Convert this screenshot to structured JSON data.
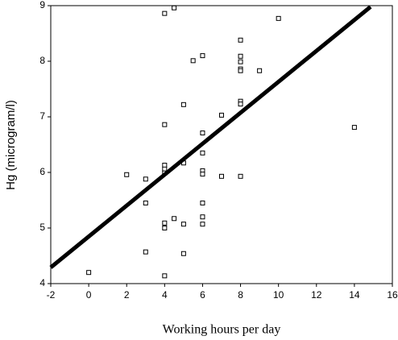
{
  "chart_data": {
    "type": "scatter",
    "x_label": "Working hours per day",
    "y_label": "Hg (microgram/l)",
    "x": [
      0,
      2,
      3,
      3,
      3,
      4,
      4.5,
      4,
      4,
      4,
      4,
      4,
      4,
      4,
      4.5,
      5,
      5,
      5,
      5,
      5.5,
      6,
      6,
      6,
      6,
      6,
      6,
      6,
      6,
      7,
      7,
      8,
      8,
      8,
      8,
      8,
      8,
      8,
      8,
      9,
      10,
      14
    ],
    "values": [
      4.2,
      5.96,
      5.88,
      5.45,
      4.57,
      8.86,
      8.96,
      6.86,
      6.13,
      6.06,
      5.99,
      5.09,
      5.0,
      4.14,
      5.17,
      7.22,
      6.17,
      5.07,
      4.54,
      8.01,
      8.1,
      6.71,
      6.35,
      6.03,
      5.97,
      5.45,
      5.2,
      5.07,
      7.03,
      5.93,
      8.38,
      8.09,
      7.99,
      7.86,
      7.83,
      7.28,
      7.23,
      5.93,
      7.83,
      8.77,
      6.81
    ],
    "fit_line": {
      "x": [
        -2,
        14.85
      ],
      "y": [
        4.29,
        8.98
      ]
    },
    "xlim": [
      -2,
      16
    ],
    "xticks": [
      -2,
      0,
      2,
      4,
      6,
      8,
      10,
      12,
      14,
      16
    ],
    "ylim": [
      4,
      9
    ],
    "yticks": [
      4,
      5,
      6,
      7,
      8,
      9
    ],
    "color": "#000000"
  }
}
